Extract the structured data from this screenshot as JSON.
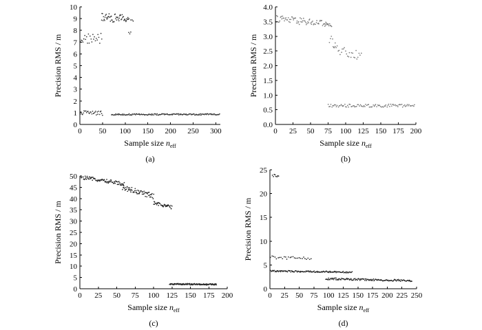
{
  "chart_data": [
    {
      "type": "scatter",
      "caption": "(a)",
      "xlabel": {
        "main": "Sample size ",
        "var": "n",
        "sub": "eff"
      },
      "ylabel": "Precision RMS / m",
      "xlim": [
        0,
        310
      ],
      "ylim": [
        0,
        10
      ],
      "xticks": [
        0,
        50,
        100,
        150,
        200,
        250,
        300
      ],
      "yticks": [
        0,
        1,
        2,
        3,
        4,
        5,
        6,
        7,
        8,
        9,
        10
      ],
      "point_color": "#333333",
      "clusters": [
        {
          "x_range": [
            1,
            48
          ],
          "count": 25,
          "y_center": 7.3,
          "y_spread": 0.45,
          "trend": 0
        },
        {
          "x_range": [
            48,
            108
          ],
          "count": 55,
          "y_center": 9.05,
          "y_spread": 0.35,
          "trend": -0.1
        },
        {
          "x_range": [
            108,
            112
          ],
          "count": 3,
          "y_center": 7.6,
          "y_spread": 0.4,
          "trend": 0
        },
        {
          "x_range": [
            112,
            118
          ],
          "count": 3,
          "y_center": 8.8,
          "y_spread": 0.1,
          "trend": 0
        },
        {
          "x_range": [
            1,
            50
          ],
          "count": 30,
          "y_center": 1.0,
          "y_spread": 0.2,
          "trend": -0.05
        },
        {
          "x_range": [
            70,
            308
          ],
          "count": 150,
          "y_center": 0.85,
          "y_spread": 0.06,
          "trend": 0
        }
      ]
    },
    {
      "type": "scatter",
      "caption": "(b)",
      "xlabel": {
        "main": "Sample size ",
        "var": "n",
        "sub": "eff"
      },
      "ylabel": "Precision RMS / m",
      "xlim": [
        0,
        200
      ],
      "ylim": [
        0,
        4
      ],
      "xticks": [
        0,
        25,
        50,
        75,
        100,
        125,
        150,
        175,
        200
      ],
      "yticks": [
        0.0,
        0.5,
        1.0,
        1.5,
        2.0,
        2.5,
        3.0,
        3.5,
        4.0
      ],
      "point_color": "#777777",
      "clusters": [
        {
          "x_range": [
            1,
            80
          ],
          "count": 80,
          "y_center": 3.5,
          "y_spread": 0.12,
          "trend": -0.2
        },
        {
          "x_range": [
            70,
            85
          ],
          "count": 10,
          "y_center": 3.0,
          "y_spread": 0.35,
          "trend": -0.4
        },
        {
          "x_range": [
            82,
            122
          ],
          "count": 28,
          "y_center": 2.45,
          "y_spread": 0.15,
          "trend": -0.25
        },
        {
          "x_range": [
            75,
            198
          ],
          "count": 95,
          "y_center": 0.64,
          "y_spread": 0.05,
          "trend": 0
        }
      ]
    },
    {
      "type": "scatter",
      "caption": "(c)",
      "xlabel": {
        "main": "Sample size ",
        "var": "n",
        "sub": "eff"
      },
      "ylabel": "Precision RMS / m",
      "xlim": [
        0,
        200
      ],
      "ylim": [
        0,
        50
      ],
      "xticks": [
        0,
        25,
        50,
        75,
        100,
        125,
        150,
        175,
        200
      ],
      "yticks": [
        0,
        5,
        10,
        15,
        20,
        25,
        30,
        35,
        40,
        45,
        50
      ],
      "point_color": "#222222",
      "clusters": [
        {
          "x_range": [
            1,
            60
          ],
          "count": 90,
          "y_center": 48,
          "y_spread": 0.8,
          "trend": -3
        },
        {
          "x_range": [
            58,
            100
          ],
          "count": 65,
          "y_center": 43,
          "y_spread": 1.2,
          "trend": -4
        },
        {
          "x_range": [
            100,
            125
          ],
          "count": 40,
          "y_center": 37,
          "y_spread": 0.8,
          "trend": -2
        },
        {
          "x_range": [
            122,
            185
          ],
          "count": 120,
          "y_center": 2.0,
          "y_spread": 0.3,
          "trend": -0.2
        }
      ]
    },
    {
      "type": "scatter",
      "caption": "(d)",
      "xlabel": {
        "main": "Sample size ",
        "var": "n",
        "sub": "eff"
      },
      "ylabel": "Precision RMS / m",
      "xlim": [
        0,
        250
      ],
      "ylim": [
        0,
        25
      ],
      "xticks": [
        0,
        25,
        50,
        75,
        100,
        125,
        150,
        175,
        200,
        225,
        250
      ],
      "yticks": [
        0,
        5,
        10,
        15,
        20,
        25
      ],
      "point_color": "#222222",
      "clusters": [
        {
          "x_range": [
            4,
            15
          ],
          "count": 8,
          "y_center": 23.8,
          "y_spread": 0.3,
          "trend": 0
        },
        {
          "x_range": [
            1,
            70
          ],
          "count": 28,
          "y_center": 6.5,
          "y_spread": 0.3,
          "trend": -0.2
        },
        {
          "x_range": [
            1,
            140
          ],
          "count": 130,
          "y_center": 3.6,
          "y_spread": 0.15,
          "trend": -0.25
        },
        {
          "x_range": [
            95,
            242
          ],
          "count": 140,
          "y_center": 1.9,
          "y_spread": 0.2,
          "trend": -0.4
        }
      ]
    }
  ]
}
